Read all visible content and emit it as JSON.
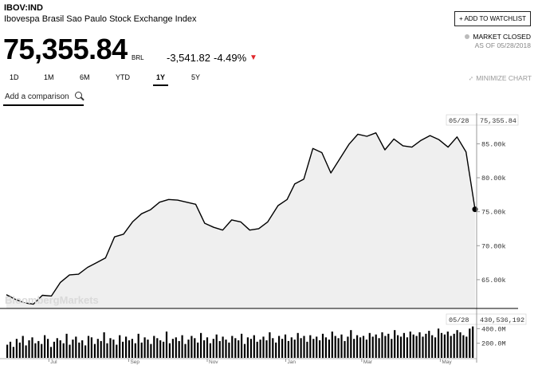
{
  "header": {
    "ticker": "IBOV:IND",
    "name": "Ibovespa Brasil Sao Paulo Stock Exchange Index",
    "price": "75,355.84",
    "currency": "BRL",
    "change": "-3,541.82",
    "change_pct": "-4.49%",
    "down_arrow": "▼",
    "watchlist_button": "+ ADD TO WATCHLIST",
    "market_status": "MARKET CLOSED",
    "as_of": "AS OF 05/28/2018"
  },
  "ranges": [
    "1D",
    "1M",
    "6M",
    "YTD",
    "1Y",
    "5Y"
  ],
  "active_range": "1Y",
  "minimize": "MINIMIZE CHART",
  "compare": {
    "placeholder": "Add a comparison"
  },
  "colors": {
    "down": "#e0262b",
    "line": "#000000",
    "area": "#efefef",
    "volume": "#000000"
  },
  "chart_data": {
    "type": "line",
    "watermark": "BloombergMarkets",
    "price": {
      "x": [
        "2017-05-29",
        "2017-06-05",
        "2017-06-12",
        "2017-06-19",
        "2017-06-26",
        "2017-07-03",
        "2017-07-10",
        "2017-07-17",
        "2017-07-24",
        "2017-07-31",
        "2017-08-07",
        "2017-08-14",
        "2017-08-21",
        "2017-08-28",
        "2017-09-04",
        "2017-09-11",
        "2017-09-18",
        "2017-09-25",
        "2017-10-02",
        "2017-10-09",
        "2017-10-16",
        "2017-10-23",
        "2017-10-30",
        "2017-11-06",
        "2017-11-13",
        "2017-11-20",
        "2017-11-27",
        "2017-12-04",
        "2017-12-11",
        "2017-12-18",
        "2017-12-26",
        "2018-01-02",
        "2018-01-08",
        "2018-01-15",
        "2018-01-22",
        "2018-01-29",
        "2018-02-05",
        "2018-02-12",
        "2018-02-19",
        "2018-02-26",
        "2018-03-05",
        "2018-03-12",
        "2018-03-19",
        "2018-03-26",
        "2018-04-02",
        "2018-04-09",
        "2018-04-16",
        "2018-04-23",
        "2018-04-30",
        "2018-05-07",
        "2018-05-14",
        "2018-05-21",
        "2018-05-28"
      ],
      "y": [
        62800,
        62100,
        61600,
        61400,
        62700,
        62600,
        64600,
        65700,
        65800,
        66800,
        67500,
        68200,
        71300,
        71700,
        73500,
        74700,
        75300,
        76400,
        76800,
        76700,
        76400,
        76100,
        73300,
        72700,
        72300,
        73800,
        73500,
        72300,
        72500,
        73500,
        75900,
        76800,
        79100,
        79800,
        84300,
        83700,
        80700,
        82800,
        84900,
        86400,
        86100,
        86600,
        84100,
        85700,
        84700,
        84500,
        85500,
        86200,
        85600,
        84500,
        86000,
        83800,
        75355.84
      ],
      "last_label_date": "05/28",
      "last_label_value": "75,355.84",
      "ylim": [
        61000,
        89500
      ],
      "yticks": [
        "85.00k",
        "80.00k",
        "75.00k",
        "70.00k",
        "65.00k"
      ],
      "ytick_values": [
        85000,
        80000,
        75000,
        70000,
        65000
      ]
    },
    "volume": {
      "last_label_date": "05/28",
      "last_label_value": "430,536,192",
      "yticks": [
        "400.0M",
        "200.0M"
      ],
      "ytick_values": [
        400000000,
        200000000
      ],
      "ylim": [
        0,
        600000000
      ],
      "values_m": [
        180,
        220,
        150,
        260,
        210,
        300,
        170,
        240,
        280,
        200,
        230,
        190,
        310,
        260,
        150,
        220,
        270,
        240,
        200,
        330,
        180,
        250,
        290,
        210,
        240,
        170,
        300,
        280,
        190,
        260,
        230,
        350,
        200,
        270,
        250,
        180,
        310,
        220,
        290,
        240,
        260,
        200,
        330,
        210,
        280,
        250,
        190,
        300,
        270,
        240,
        220,
        360,
        200,
        260,
        280,
        230,
        310,
        190,
        250,
        300,
        270,
        210,
        340,
        240,
        280,
        200,
        260,
        320,
        230,
        290,
        250,
        210,
        300,
        270,
        240,
        330,
        190,
        280,
        260,
        310,
        220,
        250,
        290,
        240,
        350,
        270,
        210,
        300,
        260,
        320,
        230,
        280,
        250,
        340,
        270,
        300,
        220,
        310,
        260,
        290,
        240,
        330,
        280,
        250,
        360,
        300,
        270,
        320,
        230,
        290,
        380,
        260,
        310,
        280,
        300,
        250,
        340,
        290,
        320,
        270,
        350,
        300,
        330,
        260,
        380,
        310,
        290,
        340,
        280,
        360,
        320,
        300,
        350,
        290,
        330,
        370,
        310,
        280,
        400,
        340,
        320,
        360,
        300,
        330,
        380,
        350,
        310,
        290,
        400,
        430
      ]
    },
    "x_months": [
      "Jul",
      "Sep",
      "Nov",
      "Jan",
      "Mar",
      "May"
    ]
  }
}
